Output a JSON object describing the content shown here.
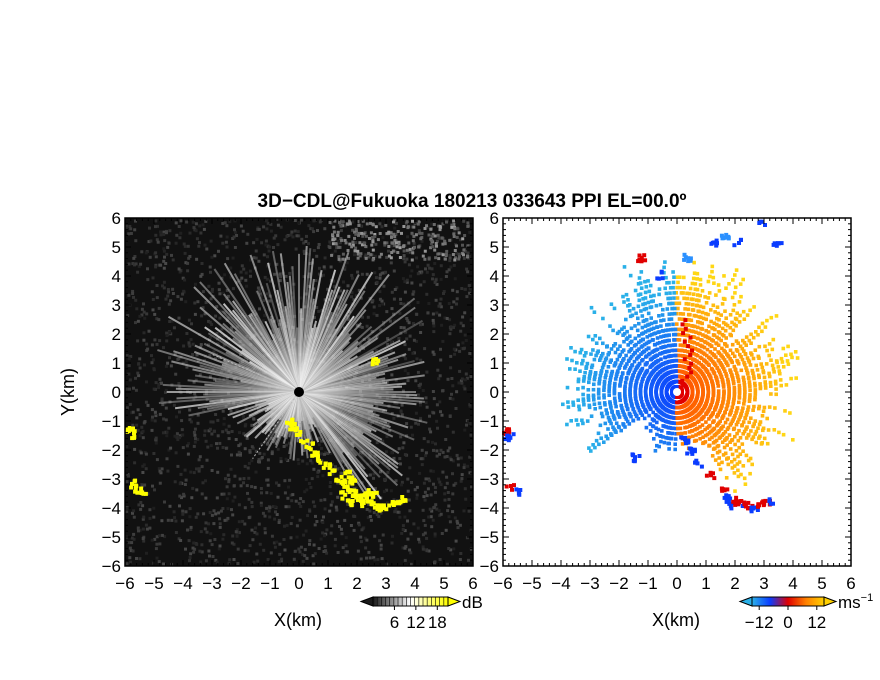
{
  "chart_data": {
    "type": "heatmap",
    "title": "3D−CDL@Fukuoka 180213 033643 PPI EL=00.0º",
    "panels": [
      {
        "name": "reflectivity",
        "xlabel": "X(km)",
        "ylabel": "Y(km)",
        "xlim": [
          -6,
          6
        ],
        "ylim": [
          -6,
          6
        ],
        "xticks": [
          "−6",
          "−5",
          "−4",
          "−3",
          "−2",
          "−1",
          "0",
          "1",
          "2",
          "3",
          "4",
          "5",
          "6"
        ],
        "yticks": [
          "6",
          "5",
          "4",
          "3",
          "2",
          "1",
          "0",
          "−1",
          "−2",
          "−3",
          "−4",
          "−5",
          "−6"
        ],
        "colorbar": {
          "unit": "dB",
          "ticks": [
            "6",
            "12",
            "18"
          ],
          "range": [
            0,
            21
          ],
          "colors": [
            "#1a1a1a",
            "#ffffff",
            "#ffff00"
          ]
        },
        "background": "#111111",
        "highlight_color": "#ffff00"
      },
      {
        "name": "velocity",
        "xlabel": "X(km)",
        "xlim": [
          -6,
          6
        ],
        "ylim": [
          -6,
          6
        ],
        "xticks": [
          "−6",
          "−5",
          "−4",
          "−3",
          "−2",
          "−1",
          "0",
          "1",
          "2",
          "3",
          "4",
          "5",
          "6"
        ],
        "yticks": [
          "6",
          "5",
          "4",
          "3",
          "2",
          "1",
          "0",
          "−1",
          "−2",
          "−3",
          "−4",
          "−5",
          "−6"
        ],
        "colorbar": {
          "unit": "ms",
          "unit_exp": "−1",
          "ticks": [
            "−12",
            "0",
            "12"
          ],
          "range": [
            -15,
            15
          ],
          "colors": [
            "#2ab0e8",
            "#0a3cff",
            "#e00000",
            "#ff8000",
            "#ffd000"
          ]
        },
        "background": "#ffffff"
      }
    ]
  }
}
